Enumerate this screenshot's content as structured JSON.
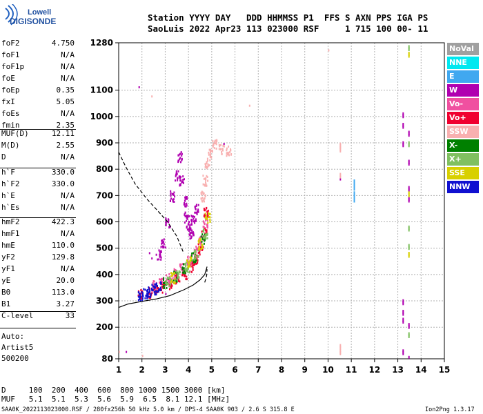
{
  "logo": {
    "line1": "Lowell",
    "line2": "DIGISONDE"
  },
  "header": {
    "row1_labels": "Station YYYY DAY   DDD HHMMSS P1  FFS S AXN PPS IGA PS",
    "row2_values": "SaoLuis 2022 Apr23 113 023000 RSF     1 715 100 00- 11"
  },
  "params": {
    "group1": [
      {
        "name": "foF2",
        "value": "4.750"
      },
      {
        "name": "foF1",
        "value": "N/A"
      },
      {
        "name": "foF1p",
        "value": "N/A"
      },
      {
        "name": "foE",
        "value": "N/A"
      },
      {
        "name": "foEp",
        "value": "0.35"
      },
      {
        "name": "fxI",
        "value": "5.05"
      },
      {
        "name": "foEs",
        "value": "N/A"
      },
      {
        "name": "fmin",
        "value": "2.35"
      }
    ],
    "group2": [
      {
        "name": "MUF(D)",
        "value": "12.11"
      },
      {
        "name": "M(D)",
        "value": "2.55"
      },
      {
        "name": "D",
        "value": "N/A"
      }
    ],
    "group3": [
      {
        "name": "h`F",
        "value": "330.0"
      },
      {
        "name": "h`F2",
        "value": "330.0"
      },
      {
        "name": "h`E",
        "value": "N/A"
      },
      {
        "name": "h`Es",
        "value": "N/A"
      }
    ],
    "group4": [
      {
        "name": "hmF2",
        "value": "422.3"
      },
      {
        "name": "hmF1",
        "value": "N/A"
      },
      {
        "name": "hmE",
        "value": "110.0"
      },
      {
        "name": "yF2",
        "value": "129.8"
      },
      {
        "name": "yF1",
        "value": "N/A"
      },
      {
        "name": "yE",
        "value": "20.0"
      },
      {
        "name": "B0",
        "value": "113.0"
      },
      {
        "name": "B1",
        "value": "3.27"
      }
    ],
    "group5": [
      {
        "name": "C-level",
        "value": "33"
      }
    ],
    "autoscale": [
      "Auto:",
      "Artist5",
      "500200"
    ]
  },
  "legend": [
    {
      "label": "NoVal",
      "color": "#a0a0a0"
    },
    {
      "label": "NNE",
      "color": "#00e8f0"
    },
    {
      "label": "E",
      "color": "#40a8f0"
    },
    {
      "label": "W",
      "color": "#b000b0"
    },
    {
      "label": "Vo-",
      "color": "#f050a0"
    },
    {
      "label": "Vo+",
      "color": "#f00030"
    },
    {
      "label": "SSW",
      "color": "#f8b0b0"
    },
    {
      "label": "X-",
      "color": "#008000"
    },
    {
      "label": "X+",
      "color": "#80c060"
    },
    {
      "label": "SSE",
      "color": "#d8d000"
    },
    {
      "label": "NNW",
      "color": "#1010d0"
    }
  ],
  "bottom": {
    "d_row": "D     100  200  400  600  800 1000 1500 3000 [km]",
    "muf_row": "MUF   5.1  5.1  5.3  5.6  5.9  6.5  8.1 12.1 [MHz]",
    "footer_left": "SAA0K_2022113023000.RSF / 280fx256h 50 kHz 5.0 km / DPS-4 SAA0K 903 / 2.6 S 315.8 E",
    "footer_right": "Ion2Png 1.3.17"
  },
  "chart_data": {
    "type": "scatter",
    "xlabel": "",
    "ylabel": "",
    "xlim": [
      1,
      15
    ],
    "ylim": [
      80,
      1280
    ],
    "x_ticks": [
      1,
      2,
      3,
      4,
      5,
      6,
      7,
      8,
      9,
      10,
      11,
      12,
      13,
      14,
      15
    ],
    "y_ticks": [
      80,
      200,
      300,
      400,
      500,
      600,
      700,
      800,
      900,
      1000,
      1100,
      1280
    ],
    "grid": true,
    "legend_position": "right",
    "curves": [
      {
        "name": "",
        "style": "solid",
        "x": [
          1.0,
          1.4,
          2.0,
          2.6,
          3.2,
          3.8,
          4.2,
          4.5,
          4.7,
          4.8
        ],
        "y": [
          275,
          288,
          298,
          307,
          320,
          342,
          360,
          380,
          400,
          430
        ]
      },
      {
        "name": "",
        "style": "dashed",
        "x": [
          1.0,
          1.3,
          1.7,
          2.2,
          2.7,
          3.1,
          3.5,
          3.8
        ],
        "y": [
          865,
          810,
          745,
          688,
          640,
          600,
          545,
          480
        ]
      },
      {
        "name": "",
        "style": "dashed",
        "x": [
          4.7,
          4.78,
          4.8
        ],
        "y": [
          370,
          395,
          420
        ]
      }
    ],
    "echo_clusters": [
      {
        "name": "F-trace",
        "color": "#f00030",
        "x": [
          1.9,
          2.3,
          2.6,
          2.9,
          3.2,
          3.5,
          3.8,
          4.1,
          4.3,
          4.5,
          4.65,
          4.75
        ],
        "y": [
          325,
          335,
          345,
          355,
          368,
          385,
          405,
          430,
          460,
          500,
          560,
          640
        ]
      },
      {
        "name": "F-trace-pink",
        "color": "#f050a0",
        "x": [
          2.5,
          2.8,
          3.1,
          3.4,
          3.7,
          4.0,
          4.3,
          4.5,
          4.7
        ],
        "y": [
          360,
          372,
          388,
          405,
          430,
          455,
          490,
          530,
          600
        ]
      },
      {
        "name": "spread-W",
        "color": "#b000b0",
        "x": [
          2.7,
          2.9,
          3.1,
          3.3,
          3.5,
          3.6,
          3.7,
          3.8,
          3.9,
          4.0,
          4.1,
          4.2,
          4.3
        ],
        "y": [
          480,
          520,
          600,
          700,
          780,
          850,
          760,
          680,
          620,
          580,
          560,
          610,
          650
        ]
      },
      {
        "name": "NNW",
        "color": "#1010d0",
        "x": [
          1.9,
          2.1,
          2.3,
          2.5,
          2.7
        ],
        "y": [
          322,
          330,
          338,
          348,
          358
        ]
      },
      {
        "name": "X-",
        "color": "#008000",
        "x": [
          3.0,
          3.4,
          3.8,
          4.2,
          4.6
        ],
        "y": [
          372,
          395,
          425,
          470,
          540
        ]
      },
      {
        "name": "X+",
        "color": "#80c060",
        "x": [
          3.1,
          3.5,
          3.9,
          4.3,
          4.7
        ],
        "y": [
          378,
          400,
          432,
          480,
          560
        ]
      },
      {
        "name": "SSE",
        "color": "#d8d000",
        "x": [
          3.3,
          4.0,
          4.5,
          4.8
        ],
        "y": [
          390,
          450,
          520,
          620
        ]
      },
      {
        "name": "SSW",
        "color": "#f8b0b0",
        "x": [
          4.6,
          4.7,
          4.8,
          4.9,
          5.1,
          5.4,
          5.7
        ],
        "y": [
          700,
          760,
          820,
          860,
          900,
          880,
          870
        ]
      },
      {
        "name": "vertical-13.2",
        "color": "#b000b0",
        "x": [
          13.2,
          13.2,
          13.2,
          13.2,
          13.2,
          13.2,
          13.2
        ],
        "y": [
          1010,
          970,
          900,
          300,
          260,
          230,
          110
        ]
      },
      {
        "name": "vertical-13.45-W",
        "color": "#b000b0",
        "x": [
          13.45,
          13.45,
          13.45,
          13.45,
          13.45,
          13.45
        ],
        "y": [
          940,
          830,
          730,
          690,
          210,
          85
        ]
      },
      {
        "name": "vertical-13.45-mix",
        "color": "#80c060",
        "x": [
          13.45,
          13.45,
          13.45,
          13.45,
          13.45
        ],
        "y": [
          1265,
          900,
          580,
          510,
          175
        ]
      },
      {
        "name": "vertical-13.45-SSE",
        "color": "#d8d000",
        "x": [
          13.45,
          13.45,
          13.45
        ],
        "y": [
          1240,
          710,
          480
        ]
      },
      {
        "name": "vertical-11.1",
        "color": "#40a8f0",
        "x": [
          11.1,
          11.1,
          11.1,
          11.1
        ],
        "y": [
          755,
          735,
          710,
          690
        ]
      },
      {
        "name": "vertical-10.5",
        "color": "#f8b0b0",
        "x": [
          10.5,
          10.5,
          10.5,
          10.5,
          10.5
        ],
        "y": [
          895,
          880,
          780,
          130,
          110
        ]
      },
      {
        "name": "scatter-W",
        "color": "#b000b0",
        "x": [
          1.85,
          2.3,
          2.4,
          1.3,
          3.0,
          3.2,
          5.5,
          10.5
        ],
        "y": [
          1115,
          485,
          465,
          110,
          330,
          720,
          900,
          765
        ]
      },
      {
        "name": "scatter-misc",
        "color": "#f8b0b0",
        "x": [
          2.4,
          6.6,
          1.0,
          2.0,
          10.0
        ],
        "y": [
          1080,
          1045,
          110,
          95,
          1255
        ]
      }
    ]
  }
}
